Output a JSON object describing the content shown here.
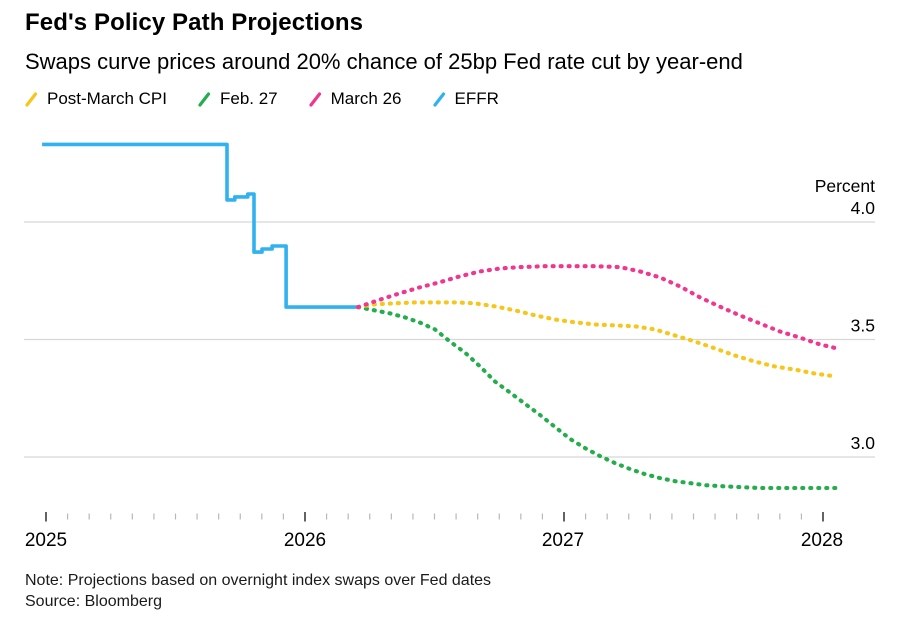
{
  "chart_data": {
    "type": "line",
    "title": "Fed's Policy Path Projections",
    "subtitle": "Swaps curve prices around 20% chance of 25bp Fed rate cut by year-end",
    "note": "Note: Projections based on overnight index swaps over Fed dates",
    "source": "Source: Bloomberg",
    "legend_position": "top",
    "grid": "horizontal",
    "y_axis": {
      "unit": "Percent",
      "side": "right",
      "tick_labels": [
        "4.0",
        "3.5",
        "3.0"
      ],
      "range_shown": [
        2.78,
        4.42
      ]
    },
    "x_axis": {
      "tick_labels": [
        "2025",
        "2026",
        "2027",
        "2028"
      ],
      "minor_ticks": "monthly",
      "range_shown": [
        2024.9,
        2028.2
      ]
    },
    "colors": {
      "grid": "#d7d7d7",
      "major_tick": "#3c3c3c",
      "minor_tick": "#b8b8b8"
    },
    "series": [
      {
        "name": "Post-March CPI",
        "color": "#f6c61b",
        "style": "dotted",
        "points": [
          [
            2026.205,
            3.638
          ],
          [
            2026.27,
            3.65
          ],
          [
            2026.347,
            3.654
          ],
          [
            2026.425,
            3.658
          ],
          [
            2026.579,
            3.658
          ],
          [
            2026.656,
            3.654
          ],
          [
            2026.734,
            3.641
          ],
          [
            2026.811,
            3.624
          ],
          [
            2026.888,
            3.603
          ],
          [
            2026.965,
            3.585
          ],
          [
            2027.042,
            3.573
          ],
          [
            2027.12,
            3.564
          ],
          [
            2027.197,
            3.56
          ],
          [
            2027.274,
            3.556
          ],
          [
            2027.351,
            3.543
          ],
          [
            2027.429,
            3.517
          ],
          [
            2027.506,
            3.491
          ],
          [
            2027.583,
            3.462
          ],
          [
            2027.66,
            3.432
          ],
          [
            2027.737,
            3.406
          ],
          [
            2027.815,
            3.385
          ],
          [
            2027.892,
            3.372
          ],
          [
            2027.969,
            3.355
          ],
          [
            2028.054,
            3.342
          ]
        ]
      },
      {
        "name": "Feb. 27",
        "color": "#25ad4c",
        "style": "dotted",
        "points": [
          [
            2026.205,
            3.638
          ],
          [
            2026.27,
            3.624
          ],
          [
            2026.328,
            3.611
          ],
          [
            2026.386,
            3.594
          ],
          [
            2026.444,
            3.572
          ],
          [
            2026.502,
            3.543
          ],
          [
            2026.56,
            3.491
          ],
          [
            2026.618,
            3.444
          ],
          [
            2026.676,
            3.385
          ],
          [
            2026.734,
            3.321
          ],
          [
            2026.792,
            3.274
          ],
          [
            2026.85,
            3.226
          ],
          [
            2026.907,
            3.179
          ],
          [
            2026.965,
            3.128
          ],
          [
            2027.023,
            3.077
          ],
          [
            2027.081,
            3.038
          ],
          [
            2027.139,
            3.004
          ],
          [
            2027.197,
            2.974
          ],
          [
            2027.255,
            2.949
          ],
          [
            2027.313,
            2.927
          ],
          [
            2027.371,
            2.91
          ],
          [
            2027.429,
            2.897
          ],
          [
            2027.487,
            2.889
          ],
          [
            2027.545,
            2.88
          ],
          [
            2027.602,
            2.876
          ],
          [
            2027.68,
            2.872
          ],
          [
            2027.757,
            2.868
          ],
          [
            2028.054,
            2.868
          ]
        ]
      },
      {
        "name": "March 26",
        "color": "#f0368f",
        "style": "dotted",
        "points": [
          [
            2026.205,
            3.638
          ],
          [
            2026.29,
            3.67
          ],
          [
            2026.367,
            3.697
          ],
          [
            2026.444,
            3.722
          ],
          [
            2026.521,
            3.744
          ],
          [
            2026.598,
            3.769
          ],
          [
            2026.676,
            3.79
          ],
          [
            2026.753,
            3.802
          ],
          [
            2026.83,
            3.808
          ],
          [
            2026.927,
            3.812
          ],
          [
            2027.12,
            3.812
          ],
          [
            2027.216,
            3.808
          ],
          [
            2027.293,
            3.79
          ],
          [
            2027.371,
            3.764
          ],
          [
            2027.448,
            3.726
          ],
          [
            2027.525,
            3.679
          ],
          [
            2027.602,
            3.64
          ],
          [
            2027.68,
            3.602
          ],
          [
            2027.757,
            3.568
          ],
          [
            2027.834,
            3.534
          ],
          [
            2027.911,
            3.508
          ],
          [
            2027.988,
            3.479
          ],
          [
            2028.054,
            3.462
          ]
        ]
      },
      {
        "name": "EFFR",
        "color": "#30b2f0",
        "style": "solid",
        "points": [
          [
            2024.985,
            4.33
          ],
          [
            2025.699,
            4.33
          ],
          [
            2025.699,
            4.094
          ],
          [
            2025.729,
            4.094
          ],
          [
            2025.729,
            4.107
          ],
          [
            2025.779,
            4.107
          ],
          [
            2025.779,
            4.119
          ],
          [
            2025.803,
            4.119
          ],
          [
            2025.803,
            3.872
          ],
          [
            2025.834,
            3.872
          ],
          [
            2025.834,
            3.885
          ],
          [
            2025.873,
            3.885
          ],
          [
            2025.873,
            3.898
          ],
          [
            2025.927,
            3.898
          ],
          [
            2025.927,
            3.638
          ],
          [
            2026.205,
            3.638
          ]
        ]
      }
    ]
  }
}
